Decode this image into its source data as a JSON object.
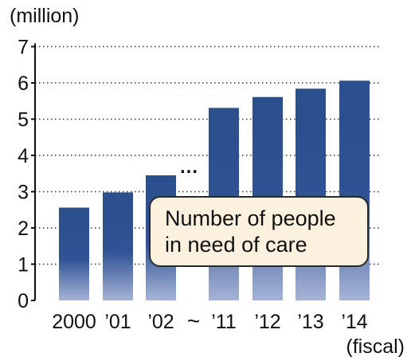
{
  "chart_data": {
    "type": "bar",
    "categories": [
      "2000",
      "’01",
      "’02",
      "’11",
      "’12",
      "’13",
      "’14"
    ],
    "values": [
      2.56,
      2.98,
      3.45,
      5.31,
      5.61,
      5.84,
      6.06
    ],
    "ylabel": "(million)",
    "xlabel": "(fiscal)",
    "ylim": [
      0,
      7
    ],
    "yticks": [
      "0",
      "1",
      "2",
      "3",
      "4",
      "5",
      "6",
      "7"
    ],
    "grid": true,
    "axis_break": "~",
    "break_marker": "...",
    "annotation": [
      "Number of people",
      "in need of care"
    ],
    "colors": {
      "bar_top": "#2b4f8c",
      "bar_bottom": "#a6b3d6",
      "callout_fill": "#fcf1df"
    }
  }
}
